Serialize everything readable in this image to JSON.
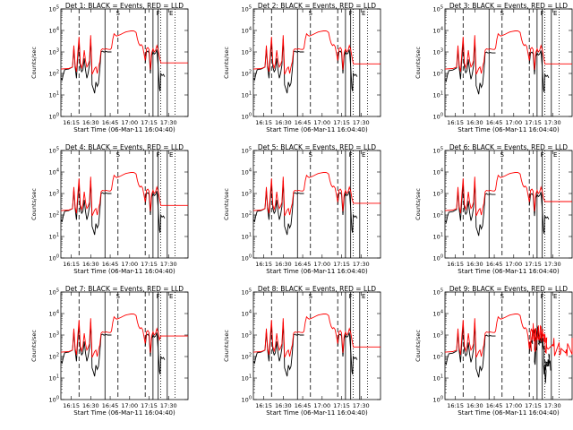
{
  "chart_data": {
    "type": "line",
    "y_scale": "log",
    "ylim": [
      1,
      100000
    ],
    "y_tick_labels": [
      "10^0",
      "10^1",
      "10^2",
      "10^3",
      "10^4",
      "10^5"
    ],
    "x_tick_labels": [
      "16:15",
      "16:30",
      "16:45",
      "17:00",
      "17:15",
      "17:30"
    ],
    "x_ticks_minutes": [
      0,
      15,
      30,
      45,
      60,
      75
    ],
    "xlim_minutes": [
      -8,
      90
    ],
    "ylabel": "Counts/sec",
    "xlabel": "Start Time (06-Mar-11 16:04:40)",
    "series_colors": {
      "events": "#000000",
      "lld": "#ff0000"
    },
    "markers": {
      "solid": [
        26,
        63,
        67,
        74
      ],
      "dashed": [
        6,
        36,
        57
      ],
      "dotted": [
        69,
        80
      ],
      "letters": [
        {
          "text": "S",
          "x": 36
        },
        {
          "text": "F",
          "x": 67
        },
        {
          "text": "E",
          "x": 77
        }
      ]
    },
    "panels": [
      {
        "title": "Det 1: BLACK = Events, RED = LLD",
        "black_scale": 1.0,
        "red_base": 310,
        "noise": false
      },
      {
        "title": "Det 2: BLACK = Events, RED = LLD",
        "black_scale": 1.0,
        "red_base": 280,
        "noise": false
      },
      {
        "title": "Det 3: BLACK = Events, RED = LLD",
        "black_scale": 0.9,
        "red_base": 280,
        "noise": false
      },
      {
        "title": "Det 4: BLACK = Events, RED = LLD",
        "black_scale": 1.0,
        "red_base": 280,
        "noise": false
      },
      {
        "title": "Det 5: BLACK = Events, RED = LLD",
        "black_scale": 1.0,
        "red_base": 350,
        "noise": false
      },
      {
        "title": "Det 6: BLACK = Events, RED = LLD",
        "black_scale": 0.9,
        "red_base": 420,
        "noise": false
      },
      {
        "title": "Det 7: BLACK = Events, RED = LLD",
        "black_scale": 1.0,
        "red_base": 900,
        "noise": false
      },
      {
        "title": "Det 8: BLACK = Events, RED = LLD",
        "black_scale": 1.0,
        "red_base": 280,
        "noise": false
      },
      {
        "title": "Det 9: BLACK = Events, RED = LLD",
        "black_scale": 0.9,
        "red_base": 280,
        "noise": true
      }
    ]
  }
}
